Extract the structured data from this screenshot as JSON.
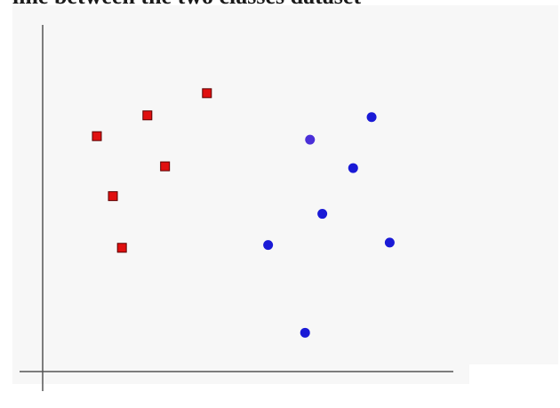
{
  "caption": "line between the two classes dataset",
  "colors": {
    "background": "#f7f7f7",
    "axis": "#555555",
    "class_square_fill": "#e01010",
    "class_square_stroke": "#5a0000",
    "class_circle_fill": "#1a1ad6",
    "class_circle_alt_fill": "#4a2fd8"
  },
  "chart_data": {
    "type": "scatter",
    "xlim": [
      0,
      100
    ],
    "ylim": [
      0,
      100
    ],
    "grid": false,
    "legend": "none",
    "series": [
      {
        "marker": "square",
        "color": "#e01010",
        "points": [
          {
            "x": 13.2,
            "y": 67.9
          },
          {
            "x": 25.5,
            "y": 73.9
          },
          {
            "x": 40.0,
            "y": 80.3
          },
          {
            "x": 29.8,
            "y": 59.2
          },
          {
            "x": 17.1,
            "y": 50.6
          },
          {
            "x": 19.3,
            "y": 35.7
          }
        ]
      },
      {
        "marker": "circle",
        "color": "#1a1ad6",
        "points": [
          {
            "x": 80.1,
            "y": 73.4
          },
          {
            "x": 65.1,
            "y": 66.9
          },
          {
            "x": 75.6,
            "y": 58.7
          },
          {
            "x": 68.1,
            "y": 45.5
          },
          {
            "x": 84.5,
            "y": 37.2
          },
          {
            "x": 54.9,
            "y": 36.5
          },
          {
            "x": 63.9,
            "y": 11.2
          }
        ]
      }
    ]
  }
}
